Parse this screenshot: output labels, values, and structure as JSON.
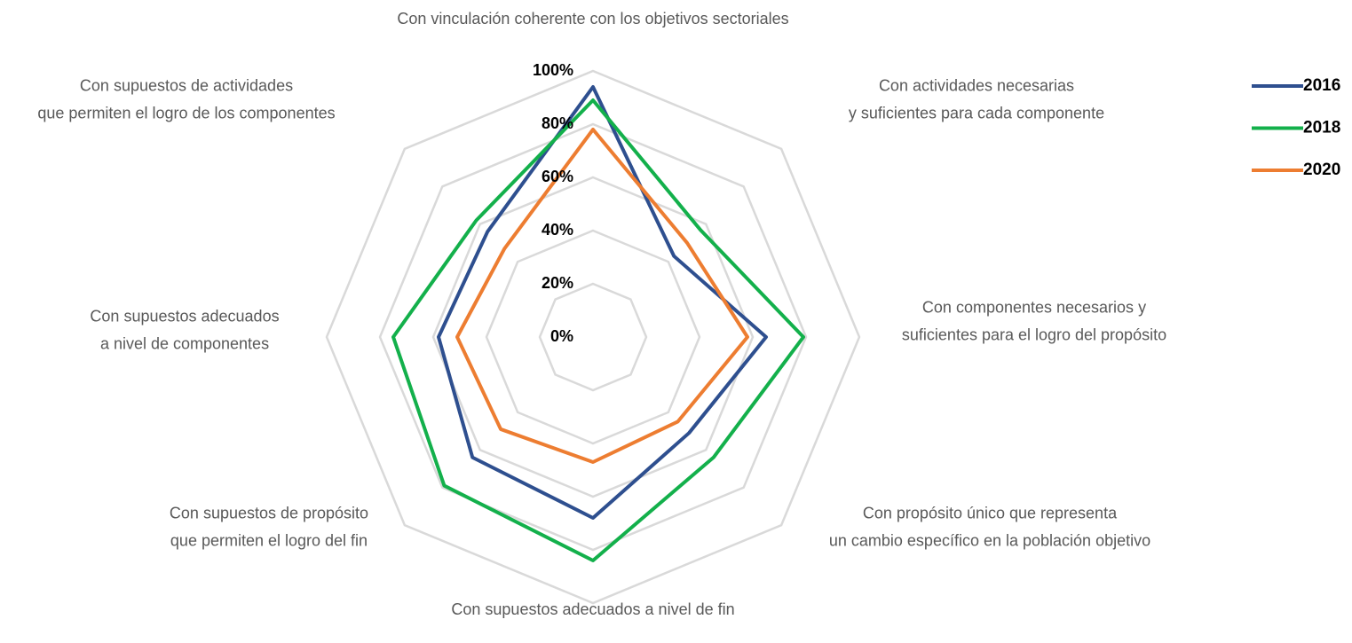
{
  "chart_data": {
    "type": "radar",
    "categories": [
      "Con vinculación coherente con los objetivos sectoriales",
      "Con actividades necesarias\ny suficientes para cada componente",
      "Con componentes necesarios y\nsuficientes para el logro del propósito",
      "Con propósito único que representa\nun cambio específico en la población objetivo",
      "Con supuestos adecuados a nivel de fin",
      "Con supuestos de propósito\nque permiten el logro del fin",
      "Con supuestos adecuados\na nivel de componentes",
      "Con supuestos de actividades\nque permiten el logro de los componentes"
    ],
    "series": [
      {
        "name": "2016",
        "color": "#2e4f8f",
        "values": [
          94,
          43,
          65,
          51,
          68,
          64,
          58,
          56
        ]
      },
      {
        "name": "2018",
        "color": "#13b04b",
        "values": [
          89,
          57,
          79,
          64,
          84,
          79,
          75,
          62
        ]
      },
      {
        "name": "2020",
        "color": "#ed7d31",
        "values": [
          78,
          50,
          58,
          45,
          47,
          49,
          51,
          47
        ]
      }
    ],
    "ylim": [
      0,
      100
    ],
    "yticks": [
      {
        "value": 0,
        "label": "0%"
      },
      {
        "value": 20,
        "label": "20%"
      },
      {
        "value": 40,
        "label": "40%"
      },
      {
        "value": 60,
        "label": "60%"
      },
      {
        "value": 80,
        "label": "80%"
      },
      {
        "value": 100,
        "label": "100%"
      }
    ],
    "grid": true,
    "legend": "right"
  }
}
